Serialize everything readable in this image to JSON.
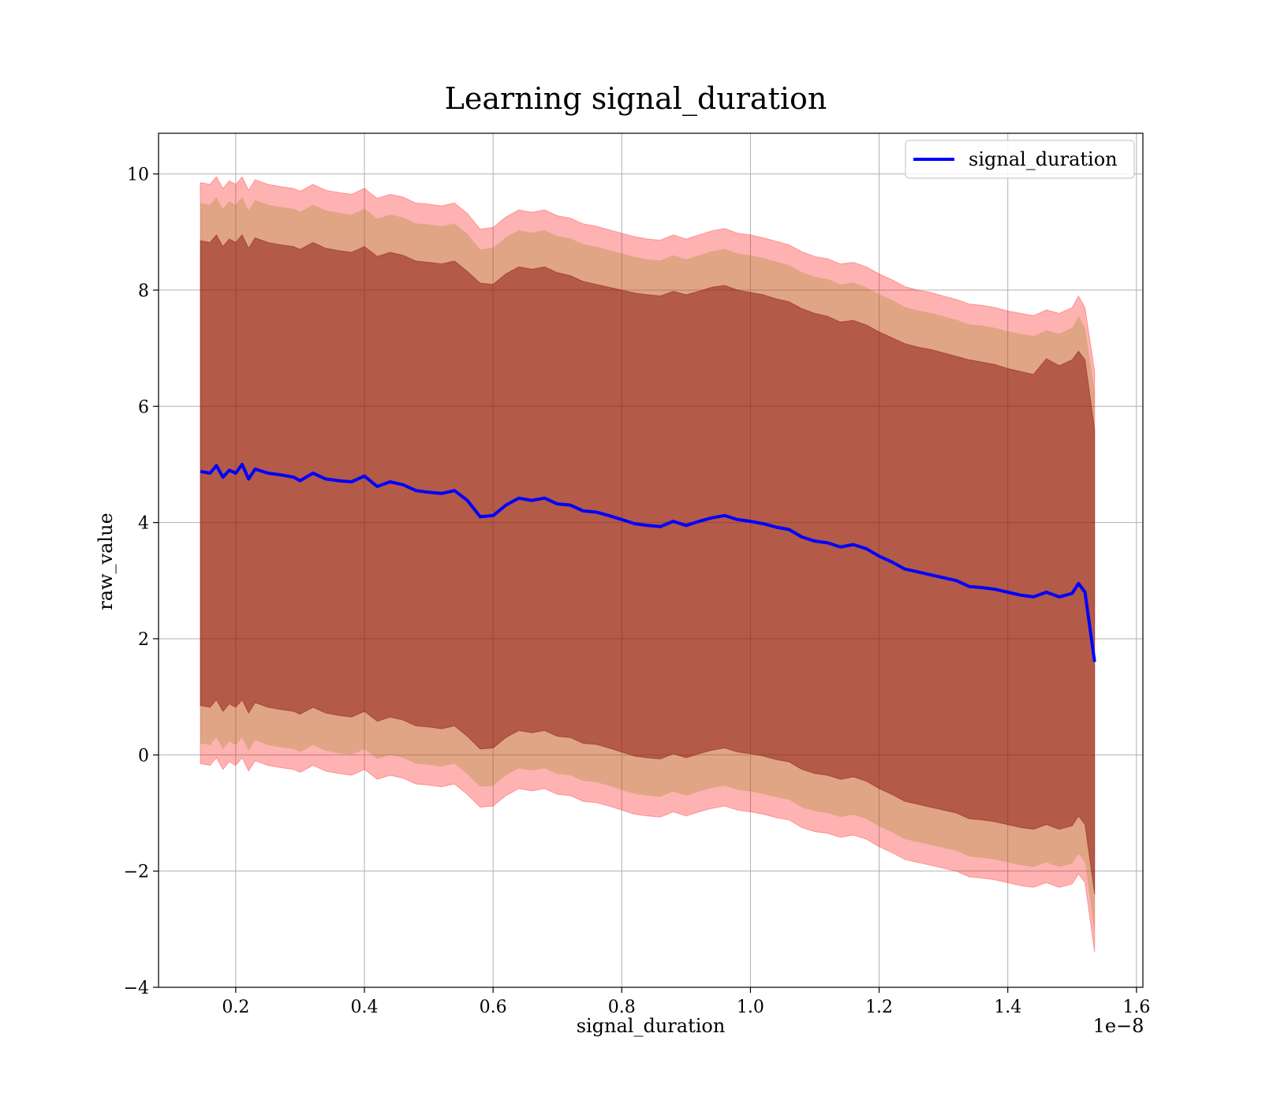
{
  "chart_data": {
    "type": "line",
    "title": "Learning signal_duration",
    "xlabel": "signal_duration",
    "ylabel": "raw_value",
    "x_offset_label": "1e−8",
    "xlim": [
      0.08,
      1.61
    ],
    "ylim": [
      -4,
      10.7
    ],
    "x_ticks": [
      0.2,
      0.4,
      0.6,
      0.8,
      1.0,
      1.2,
      1.4,
      1.6
    ],
    "x_tick_labels": [
      "0.2",
      "0.4",
      "0.6",
      "0.8",
      "1.0",
      "1.2",
      "1.4",
      "1.6"
    ],
    "y_ticks": [
      -4,
      -2,
      0,
      2,
      4,
      6,
      8,
      10
    ],
    "y_tick_labels": [
      "−4",
      "−2",
      "0",
      "2",
      "4",
      "6",
      "8",
      "10"
    ],
    "grid": true,
    "legend_position": "top-right",
    "colors": {
      "mean_line": "#0000ff",
      "outer_band": "#ff0000",
      "inner_band": "#800000",
      "overlap_tint": "#808000"
    },
    "series": [
      {
        "name": "signal_duration",
        "x": [
          0.145,
          0.16,
          0.17,
          0.18,
          0.19,
          0.2,
          0.21,
          0.22,
          0.23,
          0.25,
          0.27,
          0.29,
          0.3,
          0.32,
          0.34,
          0.36,
          0.38,
          0.4,
          0.42,
          0.44,
          0.46,
          0.48,
          0.5,
          0.52,
          0.54,
          0.56,
          0.58,
          0.6,
          0.62,
          0.64,
          0.66,
          0.68,
          0.7,
          0.72,
          0.74,
          0.76,
          0.78,
          0.8,
          0.82,
          0.84,
          0.86,
          0.88,
          0.9,
          0.92,
          0.94,
          0.96,
          0.98,
          1.0,
          1.02,
          1.04,
          1.06,
          1.08,
          1.1,
          1.12,
          1.14,
          1.16,
          1.18,
          1.2,
          1.22,
          1.24,
          1.26,
          1.28,
          1.3,
          1.32,
          1.34,
          1.36,
          1.38,
          1.4,
          1.42,
          1.44,
          1.46,
          1.48,
          1.5,
          1.51,
          1.52,
          1.535
        ],
        "mean": [
          4.88,
          4.85,
          4.98,
          4.78,
          4.9,
          4.85,
          5.0,
          4.75,
          4.92,
          4.85,
          4.82,
          4.78,
          4.72,
          4.85,
          4.75,
          4.72,
          4.7,
          4.8,
          4.62,
          4.7,
          4.65,
          4.55,
          4.52,
          4.5,
          4.55,
          4.38,
          4.1,
          4.12,
          4.3,
          4.42,
          4.38,
          4.42,
          4.32,
          4.3,
          4.2,
          4.18,
          4.12,
          4.05,
          3.98,
          3.95,
          3.93,
          4.02,
          3.95,
          4.02,
          4.08,
          4.12,
          4.05,
          4.02,
          3.98,
          3.92,
          3.88,
          3.75,
          3.68,
          3.65,
          3.58,
          3.62,
          3.55,
          3.42,
          3.32,
          3.2,
          3.15,
          3.1,
          3.05,
          3.0,
          2.9,
          2.88,
          2.85,
          2.8,
          2.75,
          2.72,
          2.8,
          2.72,
          2.78,
          2.95,
          2.8,
          1.6
        ],
        "inner_upper": [
          8.85,
          8.82,
          8.95,
          8.75,
          8.88,
          8.82,
          8.95,
          8.72,
          8.9,
          8.82,
          8.78,
          8.75,
          8.7,
          8.82,
          8.72,
          8.68,
          8.65,
          8.75,
          8.58,
          8.65,
          8.6,
          8.5,
          8.48,
          8.45,
          8.5,
          8.32,
          8.12,
          8.1,
          8.28,
          8.4,
          8.36,
          8.4,
          8.3,
          8.25,
          8.15,
          8.1,
          8.05,
          8.0,
          7.95,
          7.92,
          7.9,
          7.98,
          7.92,
          7.98,
          8.05,
          8.08,
          8.0,
          7.96,
          7.92,
          7.85,
          7.8,
          7.68,
          7.6,
          7.55,
          7.45,
          7.48,
          7.4,
          7.28,
          7.18,
          7.08,
          7.02,
          6.98,
          6.92,
          6.86,
          6.8,
          6.76,
          6.72,
          6.65,
          6.6,
          6.55,
          6.82,
          6.7,
          6.8,
          6.95,
          6.8,
          5.6
        ],
        "inner_lower": [
          0.85,
          0.82,
          0.95,
          0.75,
          0.88,
          0.82,
          0.95,
          0.72,
          0.9,
          0.82,
          0.78,
          0.75,
          0.7,
          0.82,
          0.72,
          0.68,
          0.65,
          0.75,
          0.58,
          0.65,
          0.6,
          0.5,
          0.48,
          0.45,
          0.5,
          0.32,
          0.1,
          0.12,
          0.3,
          0.42,
          0.38,
          0.42,
          0.32,
          0.3,
          0.2,
          0.18,
          0.12,
          0.05,
          -0.02,
          -0.05,
          -0.07,
          0.02,
          -0.05,
          0.02,
          0.08,
          0.12,
          0.05,
          0.02,
          -0.02,
          -0.08,
          -0.12,
          -0.25,
          -0.32,
          -0.35,
          -0.42,
          -0.38,
          -0.45,
          -0.58,
          -0.68,
          -0.8,
          -0.85,
          -0.9,
          -0.95,
          -1.0,
          -1.1,
          -1.12,
          -1.15,
          -1.2,
          -1.25,
          -1.28,
          -1.2,
          -1.28,
          -1.22,
          -1.05,
          -1.2,
          -2.4
        ],
        "outer_upper": [
          9.85,
          9.82,
          9.95,
          9.75,
          9.88,
          9.82,
          9.95,
          9.72,
          9.9,
          9.82,
          9.78,
          9.75,
          9.7,
          9.82,
          9.72,
          9.68,
          9.65,
          9.75,
          9.58,
          9.65,
          9.6,
          9.5,
          9.48,
          9.45,
          9.5,
          9.32,
          9.05,
          9.08,
          9.26,
          9.38,
          9.34,
          9.38,
          9.28,
          9.24,
          9.14,
          9.1,
          9.04,
          8.98,
          8.92,
          8.88,
          8.86,
          8.95,
          8.88,
          8.95,
          9.02,
          9.06,
          8.98,
          8.95,
          8.9,
          8.84,
          8.78,
          8.66,
          8.58,
          8.54,
          8.45,
          8.48,
          8.4,
          8.28,
          8.18,
          8.06,
          8.0,
          7.96,
          7.9,
          7.84,
          7.76,
          7.74,
          7.7,
          7.64,
          7.6,
          7.56,
          7.66,
          7.6,
          7.7,
          7.9,
          7.7,
          6.6
        ],
        "outer_lower": [
          -0.15,
          -0.18,
          -0.05,
          -0.25,
          -0.12,
          -0.18,
          -0.05,
          -0.28,
          -0.1,
          -0.18,
          -0.22,
          -0.25,
          -0.3,
          -0.18,
          -0.28,
          -0.32,
          -0.35,
          -0.25,
          -0.42,
          -0.35,
          -0.4,
          -0.5,
          -0.52,
          -0.55,
          -0.5,
          -0.68,
          -0.9,
          -0.88,
          -0.7,
          -0.58,
          -0.62,
          -0.58,
          -0.68,
          -0.7,
          -0.8,
          -0.82,
          -0.88,
          -0.95,
          -1.02,
          -1.05,
          -1.07,
          -0.98,
          -1.05,
          -0.98,
          -0.92,
          -0.88,
          -0.95,
          -0.98,
          -1.02,
          -1.08,
          -1.12,
          -1.25,
          -1.32,
          -1.35,
          -1.42,
          -1.38,
          -1.45,
          -1.58,
          -1.68,
          -1.8,
          -1.85,
          -1.9,
          -1.95,
          -2.0,
          -2.1,
          -2.12,
          -2.15,
          -2.2,
          -2.25,
          -2.28,
          -2.2,
          -2.28,
          -2.22,
          -2.05,
          -2.2,
          -3.4
        ]
      }
    ]
  }
}
